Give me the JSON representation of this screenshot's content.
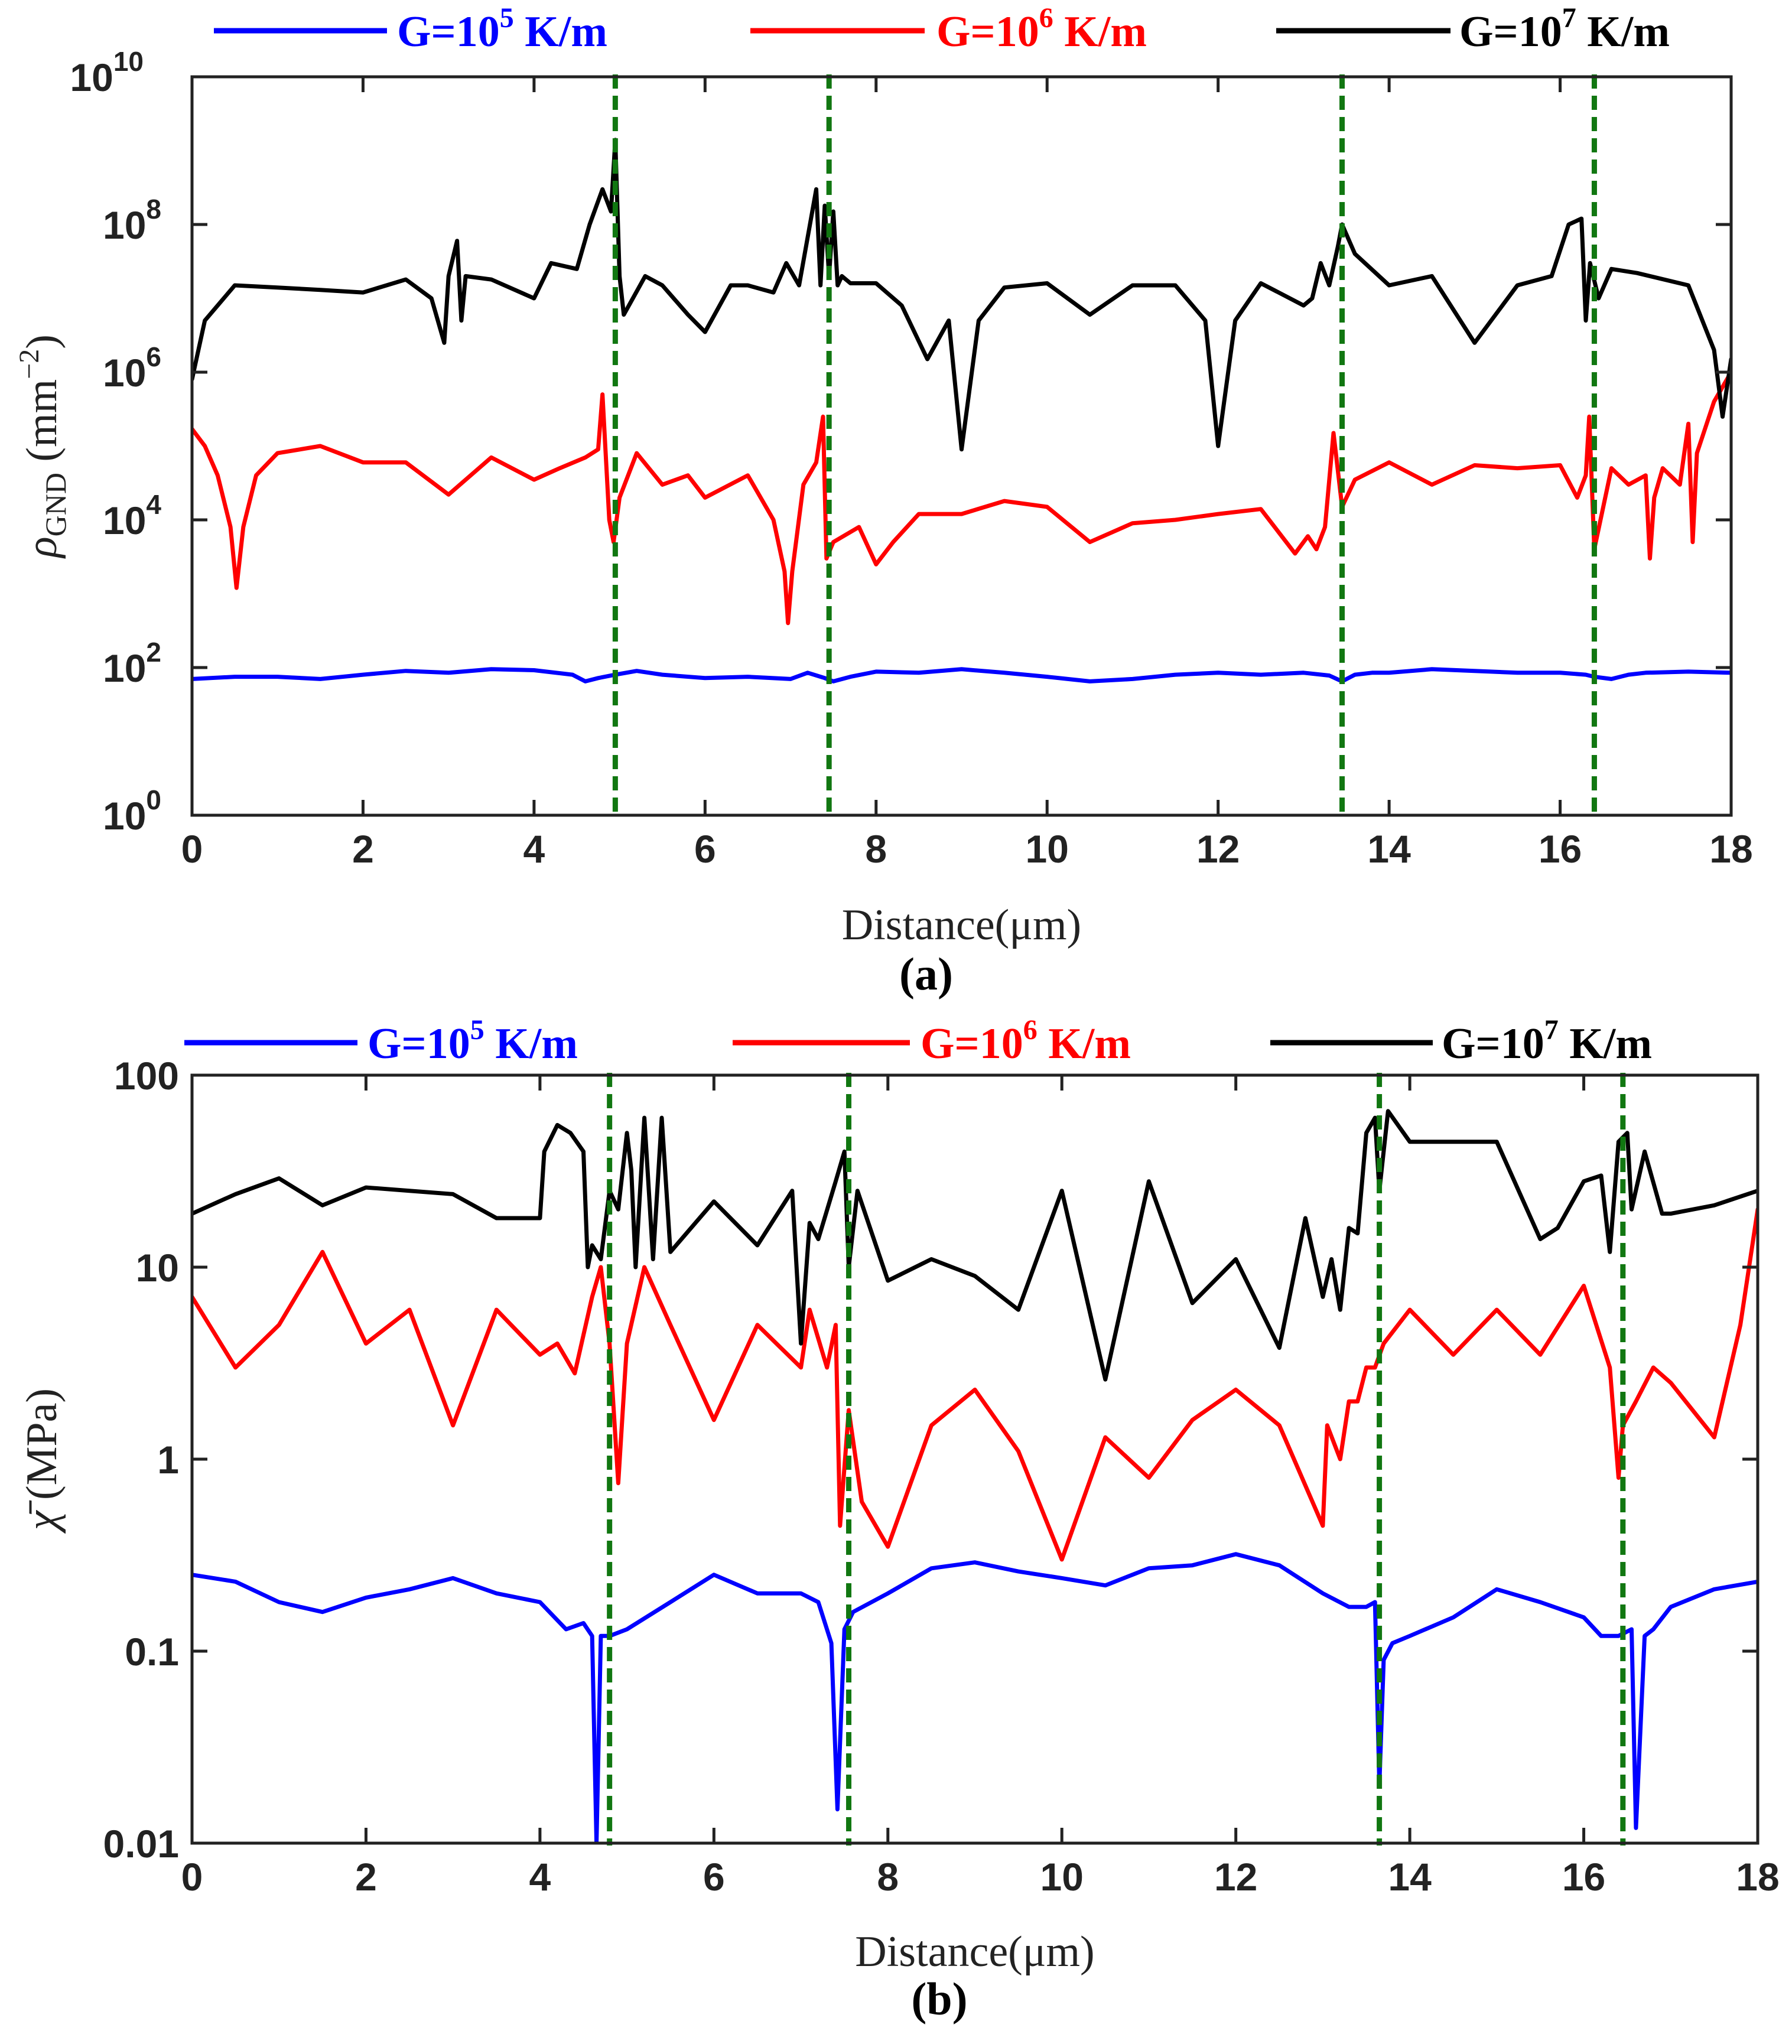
{
  "chart_data": [
    {
      "panel_label": "(a)",
      "type": "line",
      "xlabel": "Distance(μm)",
      "ylabel": "ρGND (mm⁻²)",
      "ylabel_main": "ρ",
      "ylabel_sub": "GND",
      "ylabel_unit": " (mm",
      "ylabel_unit_sup": "−2",
      "ylabel_unit_close": ")",
      "yscale": "log",
      "xlim": [
        0,
        18
      ],
      "ylim": [
        1,
        10000000000
      ],
      "xticks": [
        "0",
        "2",
        "4",
        "6",
        "8",
        "10",
        "12",
        "14",
        "16",
        "18"
      ],
      "yticks": [
        {
          "base": "10",
          "exp": "0"
        },
        {
          "base": "10",
          "exp": "2"
        },
        {
          "base": "10",
          "exp": "4"
        },
        {
          "base": "10",
          "exp": "6"
        },
        {
          "base": "10",
          "exp": "8"
        },
        {
          "base": "10",
          "exp": "10"
        }
      ],
      "grain_boundaries": [
        4.95,
        7.45,
        13.45,
        16.4
      ],
      "series": [
        {
          "name": "G=10^5 K/m",
          "legend": {
            "prefix": "G=10",
            "exp": "5",
            "suffix": " K/m"
          },
          "color": "#0000ff",
          "x": [
            0,
            0.5,
            1,
            1.5,
            2,
            2.5,
            3,
            3.5,
            4,
            4.45,
            4.6,
            4.75,
            4.95,
            5.2,
            5.5,
            6,
            6.5,
            7,
            7.2,
            7.4,
            7.5,
            7.7,
            8,
            8.5,
            9,
            9.5,
            10,
            10.5,
            11,
            11.5,
            12,
            12.5,
            13,
            13.3,
            13.45,
            13.6,
            13.8,
            14,
            14.5,
            15,
            15.5,
            16,
            16.3,
            16.4,
            16.6,
            16.8,
            17,
            17.5,
            18
          ],
          "y": [
            70,
            75,
            75,
            70,
            80,
            90,
            85,
            95,
            92,
            80,
            65,
            72,
            80,
            90,
            80,
            72,
            75,
            70,
            85,
            72,
            65,
            75,
            88,
            85,
            95,
            85,
            75,
            65,
            70,
            80,
            85,
            80,
            85,
            78,
            65,
            80,
            85,
            85,
            95,
            90,
            85,
            85,
            80,
            75,
            70,
            80,
            85,
            88,
            85
          ]
        },
        {
          "name": "G=10^6 K/m",
          "legend": {
            "prefix": "G=10",
            "exp": "6",
            "suffix": " K/m"
          },
          "color": "#ff0000",
          "x": [
            0,
            0.15,
            0.3,
            0.45,
            0.52,
            0.6,
            0.75,
            1,
            1.5,
            2,
            2.5,
            3,
            3.5,
            4,
            4.3,
            4.6,
            4.75,
            4.8,
            4.88,
            4.93,
            5.0,
            5.2,
            5.5,
            5.8,
            6,
            6.5,
            6.8,
            6.93,
            6.97,
            7.02,
            7.15,
            7.3,
            7.38,
            7.42,
            7.5,
            7.8,
            8.0,
            8.2,
            8.5,
            9,
            9.5,
            10,
            10.5,
            11,
            11.5,
            12,
            12.5,
            12.9,
            13.05,
            13.15,
            13.25,
            13.35,
            13.45,
            13.6,
            14,
            14.5,
            15,
            15.5,
            16,
            16.2,
            16.3,
            16.34,
            16.4,
            16.6,
            16.8,
            17.0,
            17.05,
            17.1,
            17.2,
            17.4,
            17.5,
            17.55,
            17.6,
            17.8,
            18
          ],
          "y": [
            170000,
            100000,
            40000,
            8000,
            1200,
            8000,
            40000,
            80000,
            100000,
            60000,
            60000,
            22000,
            70000,
            35000,
            50000,
            70000,
            90000,
            500000,
            10000,
            5000,
            20000,
            80000,
            30000,
            40000,
            20000,
            40000,
            10000,
            2000,
            400,
            2000,
            30000,
            60000,
            250000,
            3000,
            5000,
            8000,
            2500,
            5000,
            12000,
            12000,
            18000,
            15000,
            5000,
            9000,
            10000,
            12000,
            14000,
            3500,
            6000,
            4000,
            8000,
            150000,
            15000,
            35000,
            60000,
            30000,
            55000,
            50000,
            55000,
            20000,
            40000,
            250000,
            4000,
            50000,
            30000,
            40000,
            3000,
            20000,
            50000,
            30000,
            200000,
            5000,
            80000,
            400000,
            1000000
          ]
        },
        {
          "name": "G=10^7 K/m",
          "legend": {
            "prefix": "G=10",
            "exp": "7",
            "suffix": " K/m"
          },
          "color": "#000000",
          "x": [
            0,
            0.15,
            0.5,
            1,
            1.5,
            2,
            2.5,
            2.8,
            2.95,
            3.0,
            3.1,
            3.15,
            3.2,
            3.5,
            4,
            4.2,
            4.5,
            4.65,
            4.8,
            4.9,
            4.95,
            5.0,
            5.05,
            5.3,
            5.5,
            5.8,
            6,
            6.3,
            6.5,
            6.8,
            6.95,
            7.1,
            7.3,
            7.35,
            7.4,
            7.45,
            7.5,
            7.55,
            7.6,
            7.7,
            8.0,
            8.3,
            8.6,
            8.85,
            9.0,
            9.2,
            9.5,
            10,
            10.5,
            11,
            11.5,
            11.85,
            12.0,
            12.2,
            12.5,
            13.0,
            13.1,
            13.2,
            13.3,
            13.4,
            13.45,
            13.6,
            14,
            14.5,
            15,
            15.5,
            15.9,
            16.1,
            16.25,
            16.3,
            16.35,
            16.45,
            16.6,
            16.9,
            17.5,
            17.8,
            17.9,
            18
          ],
          "y": [
            800000,
            5000000,
            15000000,
            14000000,
            13000000,
            12000000,
            18000000,
            10000000,
            2500000,
            20000000,
            60000000,
            5000000,
            20000000,
            18000000,
            10000000,
            30000000,
            25000000,
            100000000,
            300000000,
            150000000,
            1400000000,
            20000000,
            6000000,
            20000000,
            15000000,
            6000000,
            3500000,
            15000000,
            15000000,
            12000000,
            30000000,
            15000000,
            300000000,
            15000000,
            180000000,
            20000000,
            150000000,
            15000000,
            20000000,
            16000000,
            16000000,
            8000000,
            1500000,
            5000000,
            90000,
            5000000,
            14000000,
            16000000,
            6000000,
            15000000,
            15000000,
            5000000,
            100000,
            5000000,
            16000000,
            8000000,
            10000000,
            30000000,
            15000000,
            50000000,
            100000000,
            40000000,
            15000000,
            20000000,
            2500000,
            15000000,
            20000000,
            100000000,
            120000000,
            5000000,
            30000000,
            10000000,
            25000000,
            22000000,
            15000000,
            2000000,
            250000,
            1500000
          ]
        }
      ]
    },
    {
      "panel_label": "(b)",
      "type": "line",
      "xlabel": "Distance(μm)",
      "ylabel": "χ̄ (MPa)",
      "ylabel_main": "χ̄",
      "ylabel_unit": " (MPa)",
      "yscale": "log",
      "xlim": [
        0,
        18
      ],
      "ylim": [
        0.01,
        100
      ],
      "xticks": [
        "0",
        "2",
        "4",
        "6",
        "8",
        "10",
        "12",
        "14",
        "16",
        "18"
      ],
      "yticks": [
        {
          "base": "0.01",
          "exp": ""
        },
        {
          "base": "0.1",
          "exp": ""
        },
        {
          "base": "1",
          "exp": ""
        },
        {
          "base": "10",
          "exp": ""
        },
        {
          "base": "100",
          "exp": ""
        }
      ],
      "grain_boundaries": [
        4.8,
        7.55,
        13.65,
        16.45
      ],
      "series": [
        {
          "name": "G=10^5 K/m",
          "legend": {
            "prefix": "G=10",
            "exp": "5",
            "suffix": " K/m"
          },
          "color": "#0000ff",
          "x": [
            0,
            0.5,
            1,
            1.5,
            2,
            2.5,
            3,
            3.5,
            4,
            4.3,
            4.5,
            4.6,
            4.65,
            4.7,
            4.8,
            5,
            5.5,
            6,
            6.5,
            7,
            7.2,
            7.35,
            7.42,
            7.5,
            7.6,
            8,
            8.5,
            9,
            9.5,
            10,
            10.5,
            11,
            11.5,
            12,
            12.5,
            13,
            13.3,
            13.5,
            13.6,
            13.65,
            13.7,
            13.8,
            14,
            14.5,
            15,
            15.5,
            16,
            16.2,
            16.4,
            16.55,
            16.6,
            16.7,
            16.8,
            17,
            17.5,
            18
          ],
          "y": [
            0.25,
            0.23,
            0.18,
            0.16,
            0.19,
            0.21,
            0.24,
            0.2,
            0.18,
            0.13,
            0.14,
            0.12,
            0.008,
            0.12,
            0.12,
            0.13,
            0.18,
            0.25,
            0.2,
            0.2,
            0.18,
            0.11,
            0.015,
            0.13,
            0.16,
            0.2,
            0.27,
            0.29,
            0.26,
            0.24,
            0.22,
            0.27,
            0.28,
            0.32,
            0.28,
            0.2,
            0.17,
            0.17,
            0.18,
            0.02,
            0.09,
            0.11,
            0.12,
            0.15,
            0.21,
            0.18,
            0.15,
            0.12,
            0.12,
            0.13,
            0.012,
            0.12,
            0.13,
            0.17,
            0.21,
            0.23
          ]
        },
        {
          "name": "G=10^6 K/m",
          "legend": {
            "prefix": "G=10",
            "exp": "6",
            "suffix": " K/m"
          },
          "color": "#ff0000",
          "x": [
            0,
            0.5,
            1,
            1.5,
            2,
            2.5,
            3,
            3.5,
            4,
            4.2,
            4.4,
            4.6,
            4.7,
            4.8,
            4.9,
            5.0,
            5.2,
            5.5,
            6.0,
            6.5,
            7.0,
            7.1,
            7.3,
            7.4,
            7.45,
            7.55,
            7.7,
            8.0,
            8.5,
            9,
            9.5,
            10,
            10.5,
            11,
            11.5,
            12,
            12.5,
            13,
            13.05,
            13.2,
            13.3,
            13.4,
            13.5,
            13.6,
            13.7,
            14,
            14.5,
            15,
            15.5,
            16,
            16.3,
            16.4,
            16.45,
            16.6,
            16.8,
            17,
            17.5,
            17.8,
            18
          ],
          "y": [
            7,
            3,
            5,
            12,
            4,
            6,
            1.5,
            6,
            3.5,
            4,
            2.8,
            7,
            10,
            4,
            0.75,
            4,
            10,
            5,
            1.6,
            5,
            3,
            6,
            3,
            5,
            0.45,
            1.8,
            0.6,
            0.35,
            1.5,
            2.3,
            1.1,
            0.3,
            1.3,
            0.8,
            1.6,
            2.3,
            1.5,
            0.45,
            1.5,
            1,
            2,
            2,
            3,
            3,
            4,
            6,
            3.5,
            6,
            3.5,
            8,
            3,
            0.8,
            1.5,
            2,
            3,
            2.5,
            1.3,
            5,
            20
          ]
        },
        {
          "name": "G=10^7 K/m",
          "legend": {
            "prefix": "G=10",
            "exp": "7",
            "suffix": " K/m"
          },
          "color": "#000000",
          "x": [
            0,
            0.5,
            1,
            1.5,
            2,
            2.5,
            3,
            3.5,
            4,
            4.05,
            4.2,
            4.35,
            4.5,
            4.55,
            4.6,
            4.7,
            4.8,
            4.9,
            5.0,
            5.05,
            5.1,
            5.2,
            5.3,
            5.4,
            5.5,
            6,
            6.5,
            6.9,
            7.0,
            7.1,
            7.2,
            7.4,
            7.5,
            7.55,
            7.65,
            8.0,
            8.5,
            9,
            9.5,
            10,
            10.5,
            11,
            11.5,
            12,
            12.5,
            12.8,
            13.0,
            13.1,
            13.2,
            13.3,
            13.4,
            13.5,
            13.6,
            13.65,
            13.75,
            14,
            14.5,
            15,
            15.5,
            15.7,
            16,
            16.2,
            16.3,
            16.4,
            16.5,
            16.55,
            16.7,
            16.9,
            17,
            17.5,
            18
          ],
          "y": [
            19,
            24,
            29,
            21,
            26,
            25,
            24,
            18,
            18,
            40,
            55,
            50,
            40,
            10,
            13,
            11,
            25,
            20,
            50,
            32,
            10,
            60,
            11,
            60,
            12,
            22,
            13,
            25,
            4,
            17,
            14,
            28,
            40,
            10,
            25,
            8.5,
            11,
            9,
            6,
            25,
            2.6,
            28,
            6.5,
            11,
            3.8,
            18,
            7,
            11,
            6,
            16,
            15,
            50,
            60,
            25,
            65,
            45,
            45,
            45,
            14,
            16,
            28,
            30,
            12,
            45,
            50,
            20,
            40,
            19,
            19,
            21,
            25
          ]
        }
      ]
    }
  ]
}
